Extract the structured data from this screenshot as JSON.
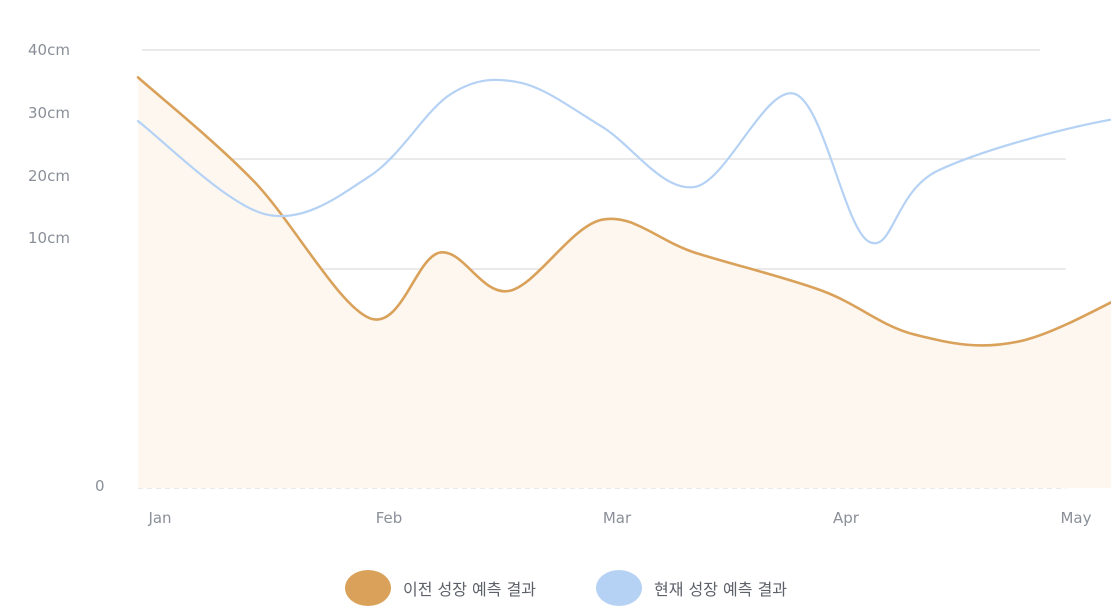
{
  "chart_data": {
    "type": "area",
    "y_ticks": [
      "0",
      "10cm",
      "20cm",
      "30cm",
      "40cm"
    ],
    "categories": [
      "Jan",
      "Feb",
      "Mar",
      "Apr",
      "May"
    ],
    "ylim": [
      0,
      40
    ],
    "grid": true,
    "legend_position": "bottom-center",
    "series": [
      {
        "name": "이전 성장 예측 결과",
        "color": "#d9a15a",
        "fill": "#fdf7f0",
        "filled": true,
        "x": [
          0,
          0.5,
          1,
          1.3,
          1.6,
          2,
          2.4,
          2.95,
          3.35,
          3.82,
          4.5,
          5.0
        ],
        "values": [
          37.5,
          28,
          15.5,
          21.5,
          18,
          24.5,
          21.5,
          18,
          14,
          13.5,
          20,
          22.5
        ]
      },
      {
        "name": "현재 성장 예측 결과",
        "color": "#b5d2f5",
        "fill": "none",
        "filled": false,
        "x": [
          0,
          0.55,
          1.0,
          1.35,
          1.65,
          2.0,
          2.4,
          2.83,
          3.15,
          3.45,
          4.3,
          5.0
        ],
        "values": [
          33.5,
          25,
          28.5,
          36,
          37,
          33,
          27.5,
          36,
          22.5,
          29,
          34,
          33.5
        ]
      }
    ]
  }
}
